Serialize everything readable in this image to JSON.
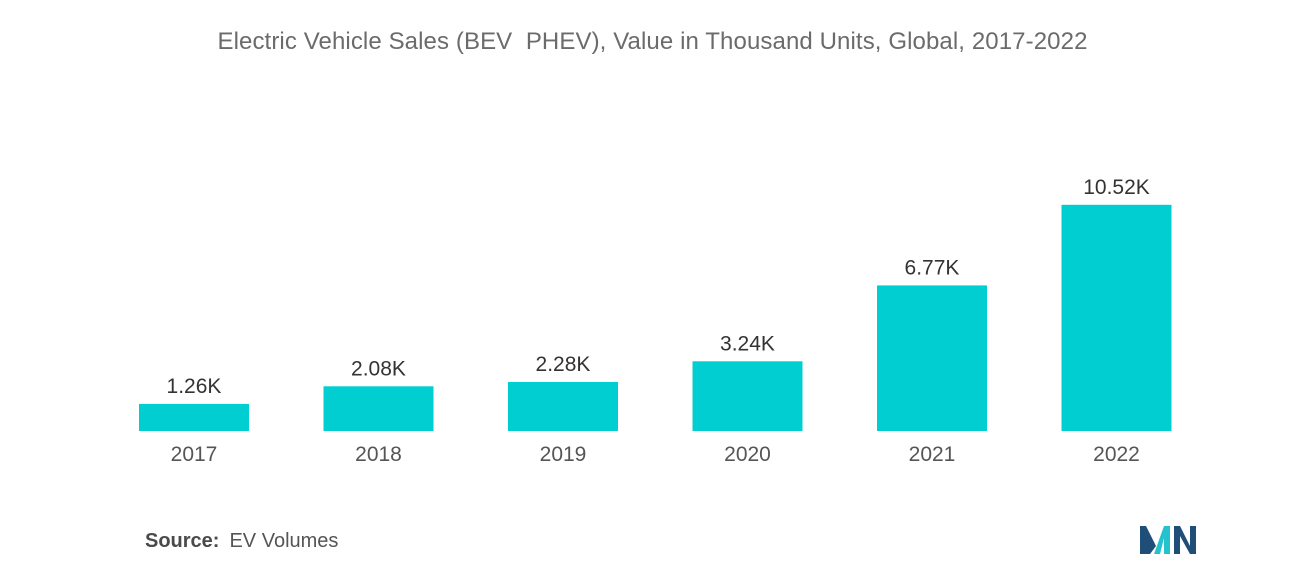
{
  "colors": {
    "bar": "#00CED1",
    "logo_dark": "#1f4e79",
    "logo_light": "#24c2cc"
  },
  "chart_data": {
    "type": "bar",
    "title": "Electric Vehicle Sales (BEV  PHEV), Value in Thousand Units, Global, 2017-2022",
    "categories": [
      "2017",
      "2018",
      "2019",
      "2020",
      "2021",
      "2022"
    ],
    "values": [
      1.26,
      2.08,
      2.28,
      3.24,
      6.77,
      10.52
    ],
    "data_labels": [
      "1.26K",
      "2.08K",
      "2.28K",
      "3.24K",
      "6.77K",
      "10.52K"
    ],
    "xlabel": "",
    "ylabel": "",
    "ylim": [
      0,
      12
    ],
    "grid": false,
    "legend": "none"
  },
  "source": {
    "label": "Source:",
    "text": "EV Volumes"
  },
  "logo": {
    "icon": "mordor-intelligence-logo"
  }
}
